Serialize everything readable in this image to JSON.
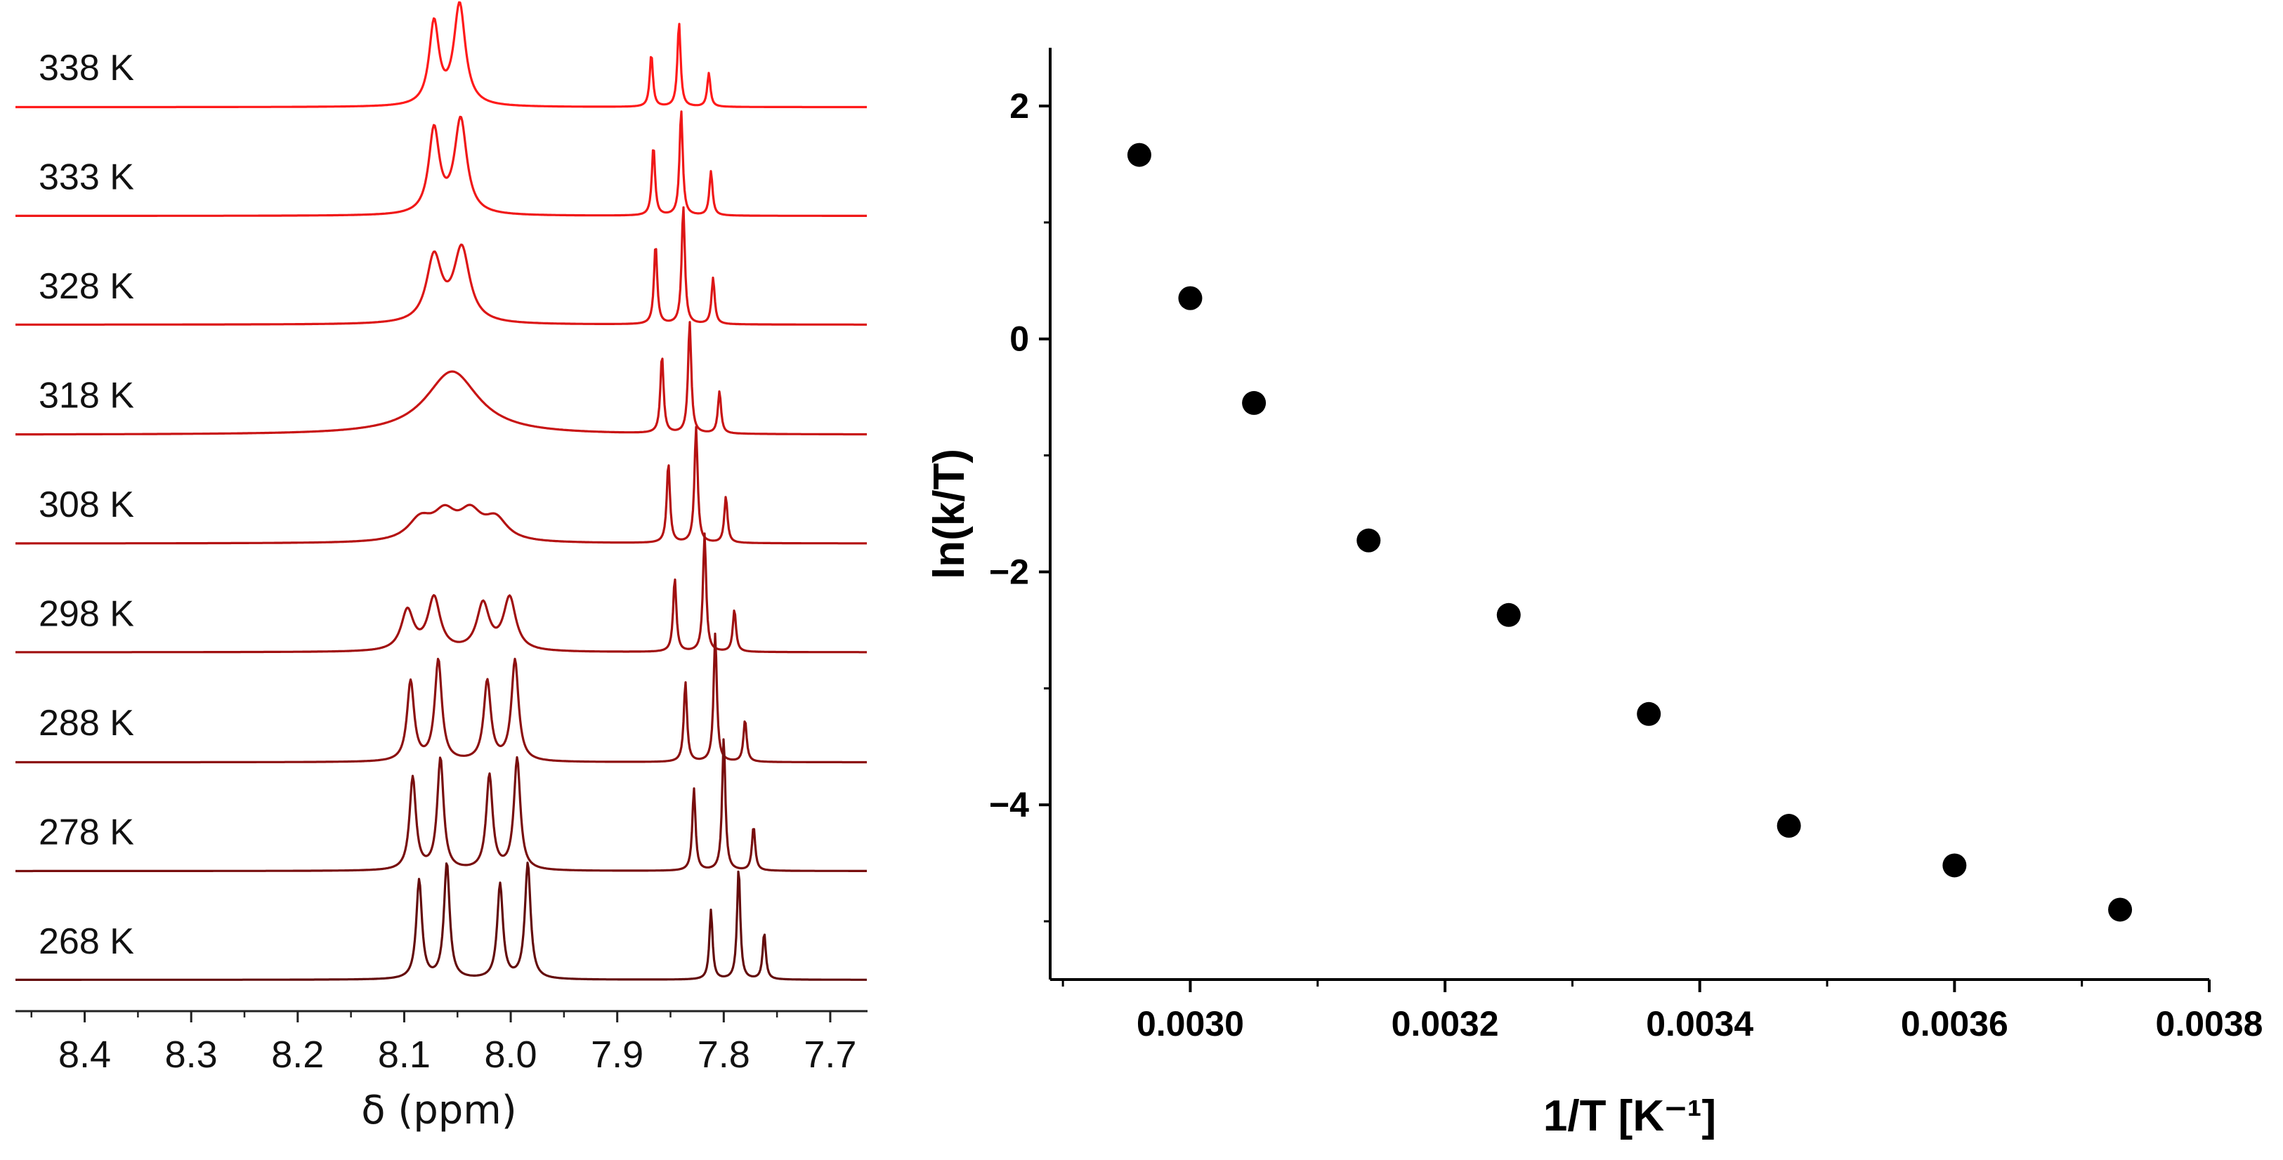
{
  "chart_data": [
    {
      "type": "line",
      "title": "",
      "xlabel": "δ (ppm)",
      "ylabel": "",
      "x_reversed": true,
      "xlim": [
        8.465,
        7.665
      ],
      "x_ticks": [
        8.4,
        8.3,
        8.2,
        8.1,
        8.0,
        7.9,
        7.8,
        7.7
      ],
      "x_tick_labels": [
        "8.4",
        "8.3",
        "8.2",
        "8.1",
        "8.0",
        "7.9",
        "7.8",
        "7.7"
      ],
      "stacked": true,
      "series": [
        {
          "name": "338 K",
          "color": "#ff1a1a",
          "peaks": [
            [
              8.072,
              0.78,
              0.0055
            ],
            [
              8.048,
              0.96,
              0.0065
            ],
            [
              7.868,
              0.5,
              0.0018
            ],
            [
              7.842,
              0.8,
              0.0018
            ],
            [
              7.814,
              0.32,
              0.0018
            ]
          ]
        },
        {
          "name": "333 K",
          "color": "#f01818",
          "peaks": [
            [
              8.072,
              0.8,
              0.006
            ],
            [
              8.047,
              0.9,
              0.007
            ],
            [
              7.866,
              0.66,
              0.0018
            ],
            [
              7.84,
              1.0,
              0.0018
            ],
            [
              7.812,
              0.42,
              0.0018
            ]
          ]
        },
        {
          "name": "328 K",
          "color": "#dc1616",
          "peaks": [
            [
              8.072,
              0.62,
              0.0085
            ],
            [
              8.046,
              0.7,
              0.009
            ],
            [
              7.864,
              0.76,
              0.0018
            ],
            [
              7.838,
              1.12,
              0.0018
            ],
            [
              7.81,
              0.44,
              0.0018
            ]
          ]
        },
        {
          "name": "318 K",
          "color": "#c81414",
          "peaks": [
            [
              8.055,
              0.6,
              0.03
            ],
            [
              7.858,
              0.74,
              0.0018
            ],
            [
              7.832,
              1.06,
              0.0018
            ],
            [
              7.804,
              0.4,
              0.0018
            ]
          ]
        },
        {
          "name": "308 K",
          "color": "#b41212",
          "peaks": [
            [
              8.085,
              0.2,
              0.014
            ],
            [
              8.062,
              0.24,
              0.013
            ],
            [
              8.038,
              0.25,
              0.013
            ],
            [
              8.014,
              0.2,
              0.013
            ],
            [
              7.852,
              0.76,
              0.0018
            ],
            [
              7.826,
              1.1,
              0.0018
            ],
            [
              7.798,
              0.44,
              0.0018
            ]
          ]
        },
        {
          "name": "298 K",
          "color": "#a01010",
          "peaks": [
            [
              8.097,
              0.38,
              0.007
            ],
            [
              8.072,
              0.5,
              0.007
            ],
            [
              8.026,
              0.44,
              0.007
            ],
            [
              8.001,
              0.5,
              0.007
            ],
            [
              7.846,
              0.7,
              0.0018
            ],
            [
              7.818,
              1.12,
              0.0018
            ],
            [
              7.79,
              0.4,
              0.0018
            ]
          ]
        },
        {
          "name": "288 K",
          "color": "#8c1010",
          "peaks": [
            [
              8.094,
              0.76,
              0.004
            ],
            [
              8.068,
              0.96,
              0.004
            ],
            [
              8.022,
              0.76,
              0.004
            ],
            [
              7.996,
              0.96,
              0.004
            ],
            [
              7.836,
              0.76,
              0.0018
            ],
            [
              7.808,
              1.22,
              0.0018
            ],
            [
              7.78,
              0.4,
              0.0018
            ]
          ]
        },
        {
          "name": "278 K",
          "color": "#780e0e",
          "peaks": [
            [
              8.092,
              0.88,
              0.0036
            ],
            [
              8.066,
              1.06,
              0.0036
            ],
            [
              8.02,
              0.9,
              0.0036
            ],
            [
              7.994,
              1.06,
              0.0036
            ],
            [
              7.828,
              0.78,
              0.0018
            ],
            [
              7.8,
              1.26,
              0.0018
            ],
            [
              7.772,
              0.42,
              0.0018
            ]
          ]
        },
        {
          "name": "268 K",
          "color": "#640c0c",
          "peaks": [
            [
              8.086,
              0.94,
              0.0032
            ],
            [
              8.06,
              1.1,
              0.0032
            ],
            [
              8.01,
              0.9,
              0.0032
            ],
            [
              7.984,
              1.1,
              0.0032
            ],
            [
              7.812,
              0.66,
              0.0018
            ],
            [
              7.786,
              1.06,
              0.0018
            ],
            [
              7.762,
              0.44,
              0.0018
            ]
          ]
        }
      ]
    },
    {
      "type": "scatter",
      "title": "",
      "xlabel": "1/T [K⁻¹]",
      "ylabel": "ln(k/T)",
      "xlim": [
        0.00289,
        0.0038
      ],
      "ylim": [
        -5.5,
        2.5
      ],
      "x_ticks": [
        0.003,
        0.0032,
        0.0034,
        0.0036,
        0.0038
      ],
      "x_tick_labels": [
        "0.0030",
        "0.0032",
        "0.0034",
        "0.0036",
        "0.0038"
      ],
      "y_ticks": [
        2,
        0,
        -2,
        -4
      ],
      "y_tick_labels": [
        "2",
        "0",
        "−2",
        "−4"
      ],
      "grid": false,
      "legend": "none",
      "marker_color": "#000000",
      "x": [
        0.00296,
        0.003,
        0.00305,
        0.00314,
        0.00325,
        0.00336,
        0.00347,
        0.0036,
        0.00373
      ],
      "y": [
        1.58,
        0.35,
        -0.55,
        -1.73,
        -2.37,
        -3.22,
        -4.18,
        -4.52,
        -4.9
      ]
    }
  ]
}
